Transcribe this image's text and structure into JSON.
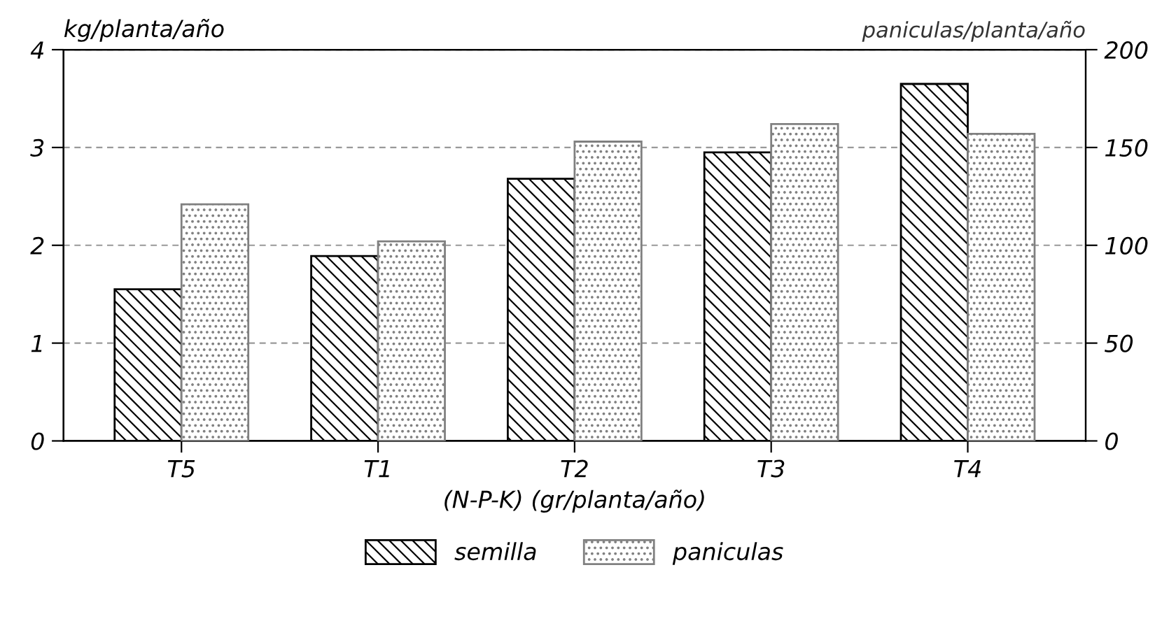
{
  "chart_data": {
    "type": "bar",
    "xlabel": "(N-P-K) (gr/planta/año)",
    "ylabel": "kg/planta/año",
    "y2label": "paniculas/planta/año",
    "categories": [
      "T5",
      "T1",
      "T2",
      "T3",
      "T4"
    ],
    "series": [
      {
        "name": "semilla",
        "color": "#000000",
        "values": [
          1.55,
          1.89,
          2.68,
          2.95,
          3.65
        ]
      },
      {
        "name": "paniculas",
        "color": "#808080",
        "axis": "y2",
        "values": [
          121,
          102,
          153,
          162,
          157
        ]
      }
    ],
    "ylim": [
      0,
      4
    ],
    "yticks": [
      0,
      1,
      2,
      3,
      4
    ],
    "y2lim": [
      0,
      200
    ],
    "y2ticks": [
      0,
      50,
      100,
      150,
      200
    ],
    "grid": "y",
    "legend": "bottom"
  }
}
